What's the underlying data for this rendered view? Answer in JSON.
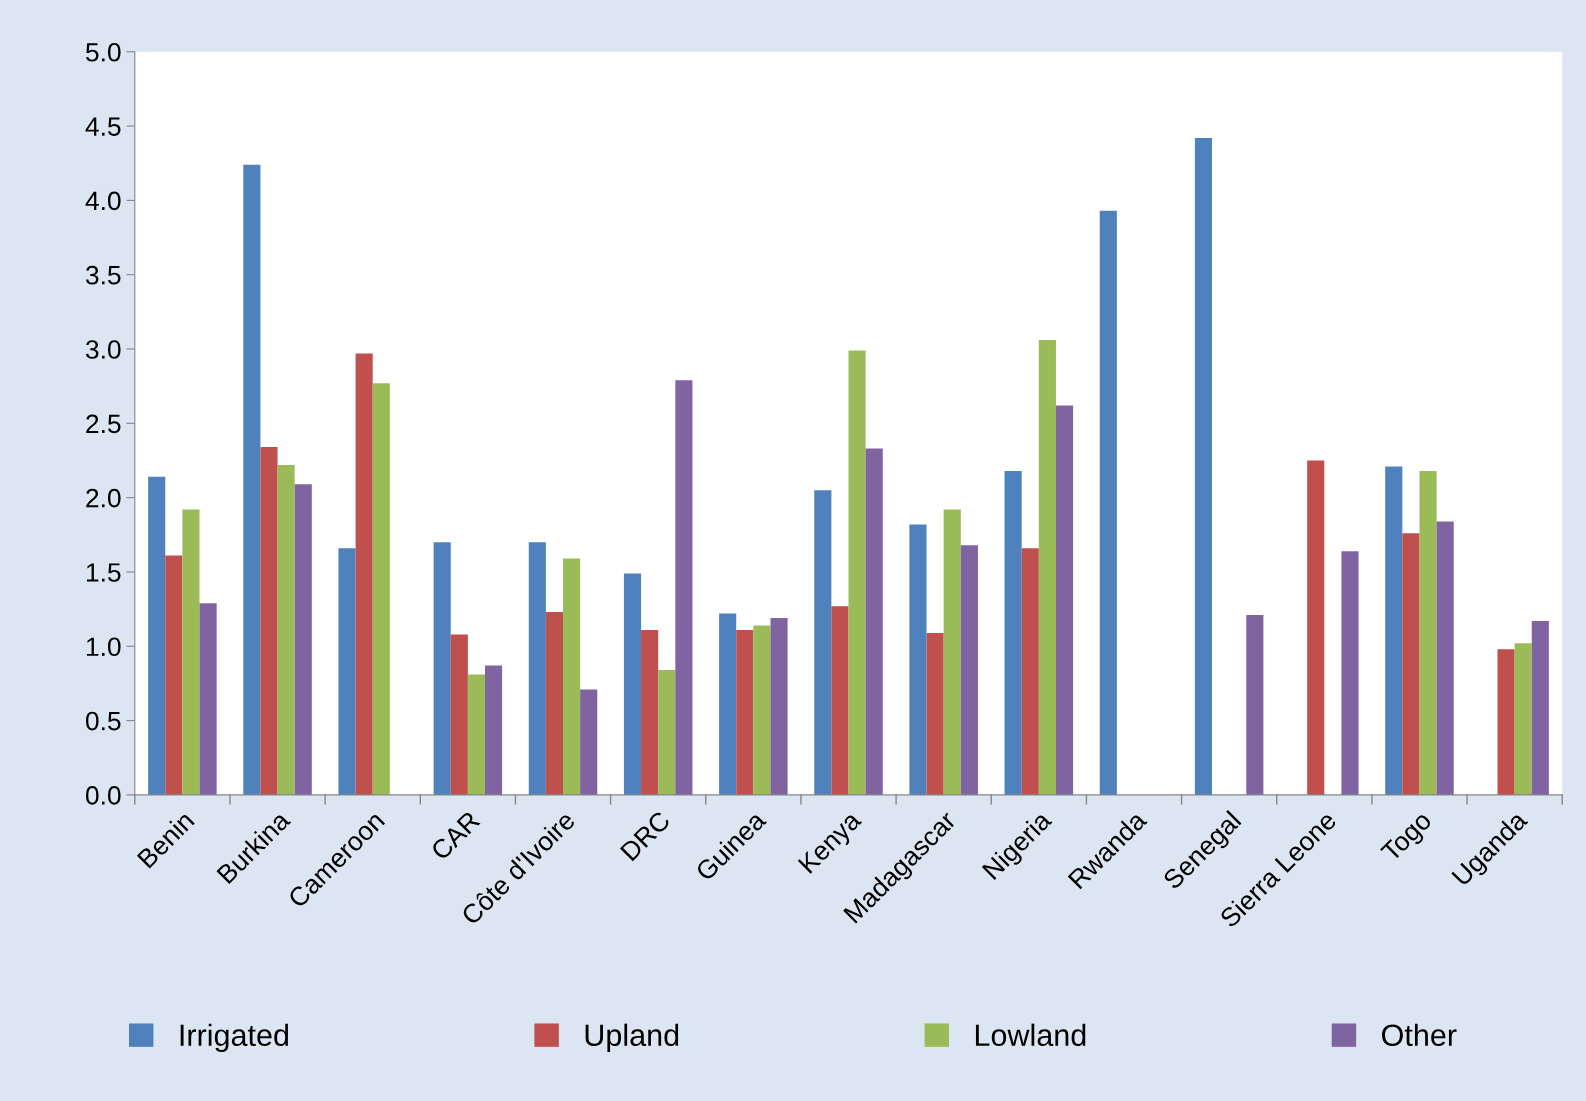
{
  "chart_data": {
    "type": "bar",
    "categories": [
      "Benin",
      "Burkina",
      "Cameroon",
      "CAR",
      "Côte d'Ivoire",
      "DRC",
      "Guinea",
      "Kenya",
      "Madagascar",
      "Nigeria",
      "Rwanda",
      "Senegal",
      "Sierra Leone",
      "Togo",
      "Uganda"
    ],
    "series": [
      {
        "name": "Irrigated",
        "color": "#4f81bd",
        "values": [
          2.14,
          4.24,
          1.66,
          1.7,
          1.7,
          1.49,
          1.22,
          2.05,
          1.82,
          2.18,
          3.93,
          4.42,
          null,
          2.21,
          null
        ]
      },
      {
        "name": "Upland",
        "color": "#c0504d",
        "values": [
          1.61,
          2.34,
          2.97,
          1.08,
          1.23,
          1.11,
          1.11,
          1.27,
          1.09,
          1.66,
          null,
          null,
          2.25,
          1.76,
          0.98
        ]
      },
      {
        "name": "Lowland",
        "color": "#9bbb59",
        "values": [
          1.92,
          2.22,
          2.77,
          0.81,
          1.59,
          0.84,
          1.14,
          2.99,
          1.92,
          3.06,
          null,
          null,
          null,
          2.18,
          1.02
        ]
      },
      {
        "name": "Other",
        "color": "#8064a2",
        "values": [
          1.29,
          2.09,
          null,
          0.87,
          0.71,
          2.79,
          1.19,
          2.33,
          1.68,
          2.62,
          null,
          1.21,
          1.64,
          1.84,
          1.17
        ]
      }
    ],
    "ylim": [
      0,
      5
    ],
    "yticks": [
      {
        "value": 0,
        "label": "0.0"
      },
      {
        "value": 0.5,
        "label": "0.5"
      },
      {
        "value": 1,
        "label": "1.0"
      },
      {
        "value": 1.5,
        "label": "1.5"
      },
      {
        "value": 2,
        "label": "2.0"
      },
      {
        "value": 2.5,
        "label": "2.5"
      },
      {
        "value": 3,
        "label": "3.0"
      },
      {
        "value": 3.5,
        "label": "3.5"
      },
      {
        "value": 4,
        "label": "4.0"
      },
      {
        "value": 4.5,
        "label": "4.5"
      },
      {
        "value": 5,
        "label": "5.0"
      }
    ],
    "grid": false,
    "legend": "bottom"
  }
}
